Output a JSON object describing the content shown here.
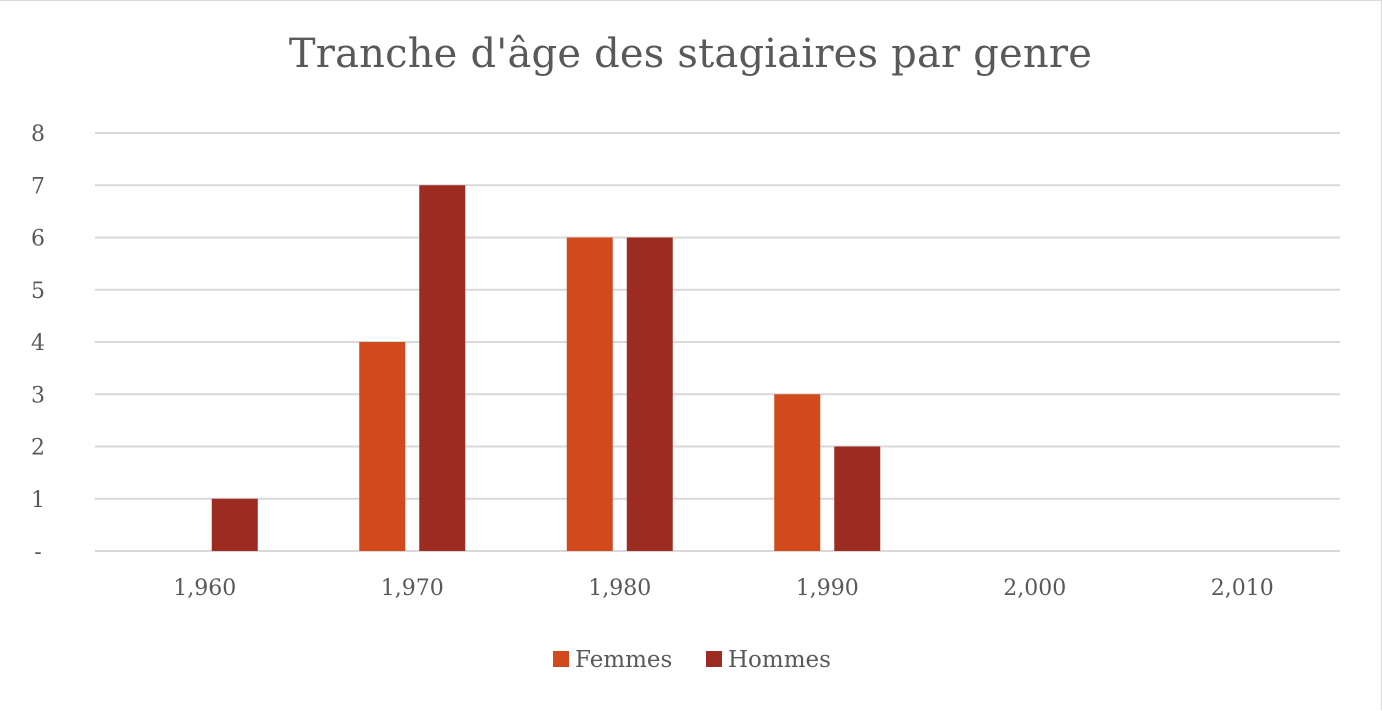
{
  "chart_data": {
    "type": "bar",
    "title": "Tranche d'âge des stagiaires par genre",
    "xlabel": "",
    "ylabel": "",
    "categories": [
      "1,960",
      "1,970",
      "1,980",
      "1,990",
      "2,000",
      "2,010"
    ],
    "series": [
      {
        "name": "Femmes",
        "color": "#d04a1e",
        "values": [
          0,
          4,
          6,
          3,
          0,
          0
        ]
      },
      {
        "name": "Hommes",
        "color": "#9c2b21",
        "values": [
          1,
          7,
          6,
          2,
          0,
          0
        ]
      }
    ],
    "ylim": [
      0,
      8
    ],
    "yticks": [
      {
        "value": 0,
        "label": "-"
      },
      {
        "value": 1,
        "label": "1"
      },
      {
        "value": 2,
        "label": "2"
      },
      {
        "value": 3,
        "label": "3"
      },
      {
        "value": 4,
        "label": "4"
      },
      {
        "value": 5,
        "label": "5"
      },
      {
        "value": 6,
        "label": "6"
      },
      {
        "value": 7,
        "label": "7"
      },
      {
        "value": 8,
        "label": "8"
      }
    ],
    "grid": true,
    "legend_position": "bottom"
  }
}
